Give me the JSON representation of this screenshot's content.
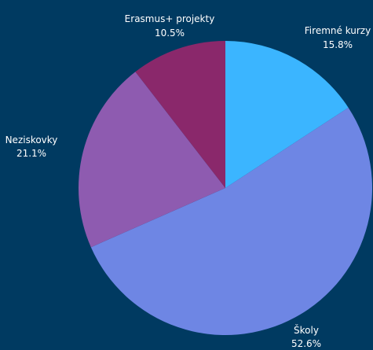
{
  "chart_data": {
    "type": "pie",
    "title": "",
    "slices": [
      {
        "label": "Firemné kurzy",
        "percent_text": "15.8%",
        "value": 15.8,
        "color": "#3bb5ff"
      },
      {
        "label": "Školy",
        "percent_text": "52.6%",
        "value": 52.6,
        "color": "#6e86e4"
      },
      {
        "label": "Neziskovky",
        "percent_text": "21.1%",
        "value": 21.1,
        "color": "#8e5bb0"
      },
      {
        "label": "Erasmus+ projekty",
        "percent_text": "10.5%",
        "value": 10.5,
        "color": "#8a286b"
      }
    ],
    "start_angle_deg": 0,
    "direction": "clockwise",
    "legend": "none"
  },
  "colors": {
    "background": "#003a61",
    "label_text": "#ffffff"
  }
}
